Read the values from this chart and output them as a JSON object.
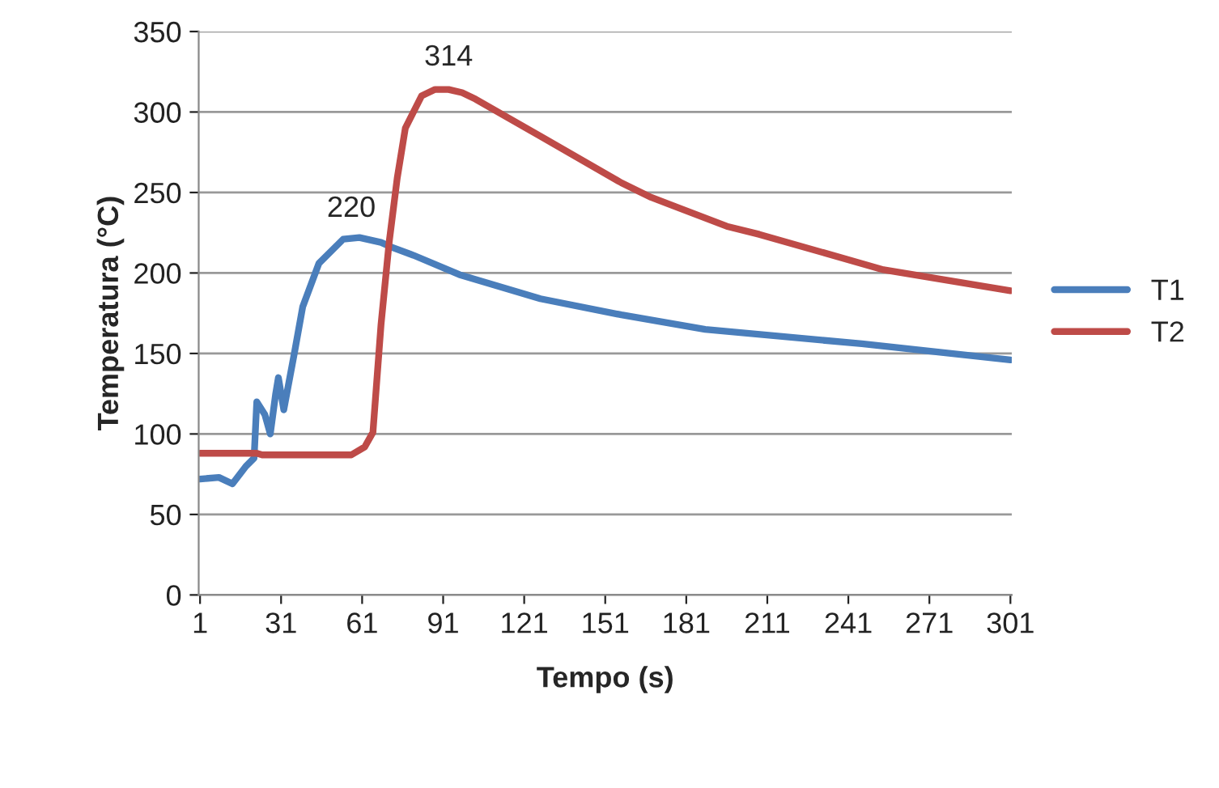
{
  "chart_data": {
    "type": "line",
    "xlabel": "Tempo (s)",
    "ylabel": "Temperatura (°C)",
    "xlim": [
      0.5,
      301.5
    ],
    "xticks": [
      1,
      31,
      61,
      91,
      121,
      151,
      181,
      211,
      241,
      271,
      301
    ],
    "ylim": [
      0,
      350
    ],
    "yticks": [
      0,
      50,
      100,
      150,
      200,
      250,
      300,
      350
    ],
    "grid": "y",
    "legend": "right",
    "marker": "none",
    "line_style": "solid",
    "series": [
      {
        "name": "T1",
        "color": "#4a7ebb",
        "x": [
          1,
          8,
          13,
          18,
          21,
          22,
          25,
          27,
          29,
          30,
          32,
          36,
          39,
          45,
          54,
          60,
          68,
          72,
          80,
          97,
          127,
          157,
          188,
          246,
          301
        ],
        "values": [
          72,
          73,
          69,
          80,
          85,
          120,
          112,
          100,
          125,
          135,
          115,
          151,
          179,
          206,
          221,
          222,
          219,
          216,
          211,
          199,
          184,
          174,
          165,
          156,
          146
        ]
      },
      {
        "name": "T2",
        "color": "#be4b48",
        "x": [
          1,
          22,
          24,
          57,
          62,
          65,
          68,
          71,
          74,
          77,
          83,
          88,
          93,
          98,
          103,
          127,
          157,
          168,
          196,
          208,
          254,
          301
        ],
        "values": [
          88,
          88,
          87,
          87,
          92,
          101,
          168,
          219,
          259,
          290,
          310,
          314,
          314,
          312,
          308,
          285,
          256,
          247,
          229,
          224,
          202,
          189
        ]
      }
    ],
    "annotations": [
      {
        "text": "220",
        "x": 57,
        "y": 220
      },
      {
        "text": "314",
        "x": 93,
        "y": 314
      }
    ]
  }
}
